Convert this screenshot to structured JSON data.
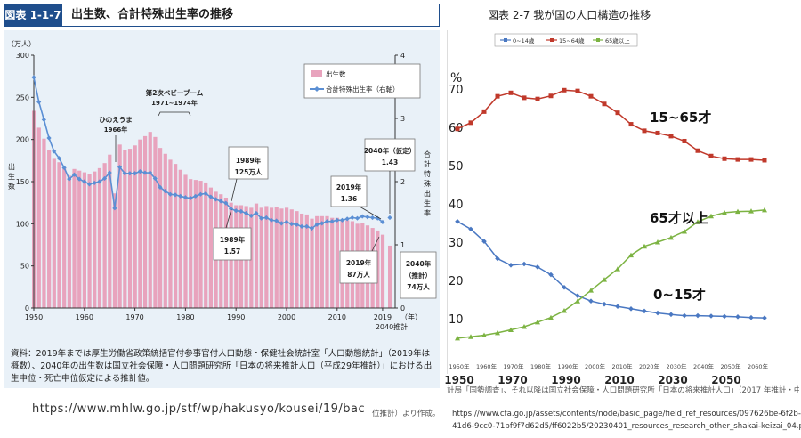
{
  "left": {
    "badge": "図表 1-1-7",
    "title": "出生数、合計特殊出生率の推移",
    "ylabel_unit": "（万人）",
    "ylabel": "出生数",
    "y2label": "合計特殊出生率",
    "x_unit": "（年）",
    "x_extra": "2040推計",
    "source": "資料：2019年までは厚生労働省政策統括官付参事官付人口動態・保健社会統計室「人口動態統計」（2019年は概数）、2040年の出生数は国立社会保障・人口問題研究所「日本の将来推計人口（平成29年推計）」における出生中位・死亡中位仮定による推計値。",
    "url": "https://www.mhlw.go.jp/stf/wp/hakusyo/kousei/19/bac",
    "annotations": {
      "boom": "第2次ベビーブーム",
      "boom_years": "1971~1974年",
      "hinoe": "ひのえうま",
      "hinoe_year": "1966年",
      "a1989b": "1989年",
      "a1989b_v": "125万人",
      "a1989t": "1989年",
      "a1989t_v": "1.57",
      "a2019t": "2019年",
      "a2019t_v": "1.36",
      "a2019b": "2019年",
      "a2019b_v": "87万人",
      "a2040t": "2040年（仮定）",
      "a2040t_v": "1.43",
      "a2040b": "2040年",
      "a2040b_v": "（推計）",
      "a2040b_v2": "74万人"
    }
  },
  "right": {
    "title": "図表 2-7  我が国の人口構造の推移",
    "pct": "%",
    "labels": {
      "s2": "15~65才",
      "s3": "65才以上",
      "s1": "0~15才"
    },
    "source_line": "計局「国勢調査」、それ以降は国立社会保障・人口問題研究所「日本の将来推計人口」（2017 年推計・中",
    "source_line2": "位推計）より作成。",
    "url1": "https://www.cfa.go.jp/assets/contents/node/basic_page/field_ref_resources/097626be-6f2b-",
    "url2": "41d6-9cc0-71bf9f7d62d5/ff6022b5/20230401_resources_research_other_shakai-keizai_04.pdf"
  },
  "chart_data": [
    {
      "type": "bar",
      "title": "出生数、合計特殊出生率の推移",
      "ylabel": "出生数（万人）",
      "y2label": "合計特殊出生率",
      "ylim": [
        0,
        300
      ],
      "y2lim": [
        0,
        4
      ],
      "yticks": [
        0,
        50,
        100,
        150,
        200,
        250,
        300
      ],
      "y2ticks": [
        0,
        1,
        2,
        3,
        4
      ],
      "xticks": [
        "1950",
        "1960",
        "1970",
        "1980",
        "1990",
        "2000",
        "2010",
        "2019"
      ],
      "grid": false,
      "legend": "top-right",
      "series": [
        {
          "name": "出生数",
          "color": "#e8a3bd",
          "x": [
            1950,
            1951,
            1952,
            1953,
            1954,
            1955,
            1956,
            1957,
            1958,
            1959,
            1960,
            1961,
            1962,
            1963,
            1964,
            1965,
            1966,
            1967,
            1968,
            1969,
            1970,
            1971,
            1972,
            1973,
            1974,
            1975,
            1976,
            1977,
            1978,
            1979,
            1980,
            1981,
            1982,
            1983,
            1984,
            1985,
            1986,
            1987,
            1988,
            1989,
            1990,
            1991,
            1992,
            1993,
            1994,
            1995,
            1996,
            1997,
            1998,
            1999,
            2000,
            2001,
            2002,
            2003,
            2004,
            2005,
            2006,
            2007,
            2008,
            2009,
            2010,
            2011,
            2012,
            2013,
            2014,
            2015,
            2016,
            2017,
            2018,
            2019,
            2040
          ],
          "values": [
            234,
            214,
            201,
            187,
            177,
            173,
            167,
            157,
            165,
            163,
            161,
            159,
            162,
            166,
            172,
            182,
            136,
            194,
            187,
            189,
            193,
            200,
            204,
            209,
            203,
            190,
            183,
            176,
            171,
            164,
            158,
            153,
            152,
            151,
            149,
            143,
            138,
            135,
            131,
            125,
            122,
            122,
            121,
            119,
            124,
            119,
            121,
            119,
            120,
            118,
            119,
            117,
            115,
            112,
            111,
            106,
            109,
            109,
            109,
            107,
            107,
            105,
            104,
            103,
            100,
            101,
            98,
            95,
            92,
            87,
            74
          ]
        },
        {
          "name": "合計特殊出生率（右軸）",
          "color": "#5b8fd4",
          "x": [
            1950,
            1951,
            1952,
            1953,
            1954,
            1955,
            1956,
            1957,
            1958,
            1959,
            1960,
            1961,
            1962,
            1963,
            1964,
            1965,
            1966,
            1967,
            1968,
            1969,
            1970,
            1971,
            1972,
            1973,
            1974,
            1975,
            1976,
            1977,
            1978,
            1979,
            1980,
            1981,
            1982,
            1983,
            1984,
            1985,
            1986,
            1987,
            1988,
            1989,
            1990,
            1991,
            1992,
            1993,
            1994,
            1995,
            1996,
            1997,
            1998,
            1999,
            2000,
            2001,
            2002,
            2003,
            2004,
            2005,
            2006,
            2007,
            2008,
            2009,
            2010,
            2011,
            2012,
            2013,
            2014,
            2015,
            2016,
            2017,
            2018,
            2019,
            2040
          ],
          "values": [
            3.65,
            3.26,
            2.98,
            2.69,
            2.48,
            2.37,
            2.22,
            2.04,
            2.11,
            2.04,
            2.0,
            1.96,
            1.98,
            2.0,
            2.05,
            2.14,
            1.58,
            2.23,
            2.13,
            2.13,
            2.13,
            2.16,
            2.14,
            2.14,
            2.05,
            1.91,
            1.85,
            1.8,
            1.79,
            1.77,
            1.75,
            1.74,
            1.77,
            1.8,
            1.81,
            1.76,
            1.72,
            1.69,
            1.66,
            1.57,
            1.54,
            1.53,
            1.5,
            1.46,
            1.5,
            1.42,
            1.43,
            1.39,
            1.38,
            1.34,
            1.36,
            1.33,
            1.32,
            1.29,
            1.29,
            1.26,
            1.32,
            1.34,
            1.37,
            1.37,
            1.39,
            1.39,
            1.41,
            1.43,
            1.42,
            1.45,
            1.44,
            1.43,
            1.42,
            1.36,
            1.43
          ]
        }
      ]
    },
    {
      "type": "line",
      "title": "図表 2-7  我が国の人口構造の推移",
      "ylabel": "%",
      "ylim": [
        0,
        80
      ],
      "yticks": [
        10,
        20,
        30,
        40,
        50,
        60,
        70
      ],
      "xticks_bottom": [
        "1950",
        "1970",
        "1990",
        "2010",
        "2030",
        "2050"
      ],
      "xticks_inner": [
        "1950年",
        "1960年",
        "1970年",
        "1980年",
        "1990年",
        "2000年",
        "2010年",
        "2020年",
        "2030年",
        "2040年",
        "2050年",
        "2060年"
      ],
      "legend": "top",
      "x": [
        1950,
        1955,
        1960,
        1965,
        1970,
        1975,
        1980,
        1985,
        1990,
        1995,
        2000,
        2005,
        2010,
        2015,
        2020,
        2025,
        2030,
        2035,
        2040,
        2045,
        2050,
        2055,
        2060,
        2065
      ],
      "series": [
        {
          "name": "0~14歳",
          "color": "#4a78c2",
          "values": [
            35.4,
            33.4,
            30.2,
            25.7,
            24.0,
            24.3,
            23.5,
            21.5,
            18.2,
            16.0,
            14.6,
            13.8,
            13.2,
            12.6,
            12.0,
            11.5,
            11.1,
            10.8,
            10.8,
            10.7,
            10.6,
            10.5,
            10.3,
            10.2
          ]
        },
        {
          "name": "15~64歳",
          "color": "#c0392b",
          "values": [
            59.6,
            61.2,
            64.1,
            68.1,
            69.0,
            67.7,
            67.4,
            68.2,
            69.7,
            69.5,
            68.1,
            66.1,
            63.8,
            60.8,
            59.1,
            58.5,
            57.7,
            56.4,
            53.9,
            52.5,
            51.8,
            51.6,
            51.6,
            51.4
          ]
        },
        {
          "name": "65歳以上",
          "color": "#7cb342",
          "values": [
            4.9,
            5.3,
            5.7,
            6.3,
            7.1,
            7.9,
            9.1,
            10.3,
            12.1,
            14.6,
            17.4,
            20.2,
            23.0,
            26.6,
            28.9,
            30.0,
            31.2,
            32.8,
            35.3,
            36.8,
            37.7,
            38.0,
            38.1,
            38.4
          ]
        }
      ]
    }
  ]
}
